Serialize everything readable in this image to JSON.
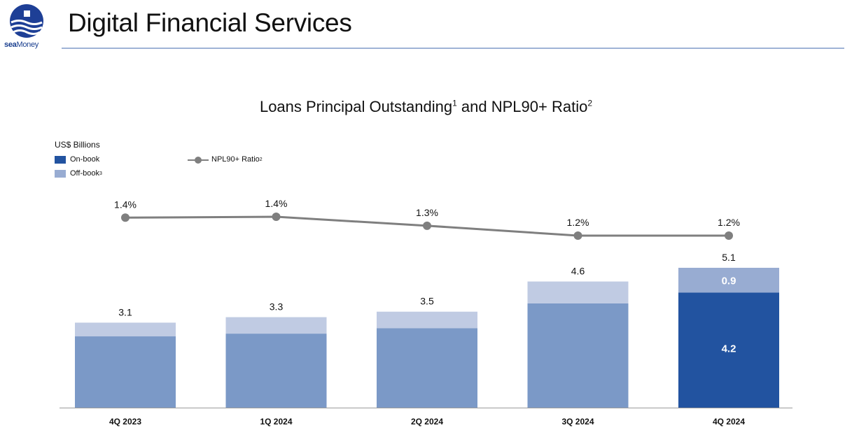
{
  "header": {
    "title": "Digital Financial Services",
    "logo": {
      "sea": "sea",
      "money": "Money"
    }
  },
  "chart_data": {
    "type": "bar",
    "title": "Loans Principal Outstanding",
    "title_mid": " and NPL90+ Ratio",
    "title_sup1": "1",
    "title_sup2": "2",
    "units_label": "US$ Billions",
    "categories": [
      "4Q 2023",
      "1Q 2024",
      "2Q 2024",
      "3Q 2024",
      "4Q 2024"
    ],
    "totals": [
      3.1,
      3.3,
      3.5,
      4.6,
      5.1
    ],
    "total_labels": [
      "3.1",
      "3.3",
      "3.5",
      "4.6",
      "5.1"
    ],
    "series": [
      {
        "name": "On-book",
        "values": [
          2.6,
          2.7,
          2.9,
          3.8,
          4.2
        ]
      },
      {
        "name": "Off-book",
        "sup": "3",
        "values": [
          0.5,
          0.6,
          0.6,
          0.8,
          0.9
        ]
      }
    ],
    "highlight_index": 4,
    "highlight_labels": {
      "on_book": "4.2",
      "off_book": "0.9"
    },
    "line_series": {
      "name": "NPL90+ Ratio",
      "sup": "2",
      "values": [
        1.42,
        1.43,
        1.33,
        1.22,
        1.22
      ],
      "labels": [
        "1.4%",
        "1.4%",
        "1.3%",
        "1.2%",
        "1.2%"
      ]
    },
    "ylim": [
      0,
      5.1
    ],
    "colors": {
      "on_book": "#7b99c7",
      "off_book": "#c0cbe3",
      "on_book_highlight": "#2253a0",
      "off_book_highlight": "#98acd2",
      "line": "#7f7f7f",
      "legend_on": "#2253a0",
      "legend_off": "#98acd2"
    }
  }
}
